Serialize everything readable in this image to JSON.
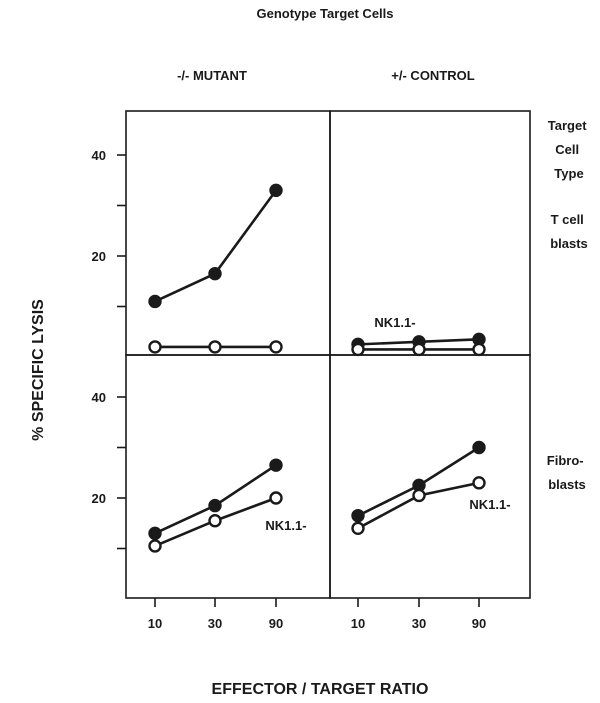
{
  "chart_data": {
    "type": "line",
    "title": "Genotype Target Cells",
    "xlabel": "EFFECTOR / TARGET RATIO",
    "ylabel": "% SPECIFIC LYSIS",
    "row_header": "Target Cell Type",
    "x_categories": [
      "10",
      "30",
      "90"
    ],
    "yticks": [
      20,
      40
    ],
    "ylim": [
      -9,
      49
    ],
    "columns": [
      "-/-  MUTANT",
      "+/- CONTROL"
    ],
    "rows": [
      "T cell blasts",
      "Fibro-blasts"
    ],
    "panels": [
      {
        "column": "-/-  MUTANT",
        "row": "T cell blasts",
        "label": "NK1.1-",
        "series": [
          {
            "marker": "filled",
            "values": [
              11,
              16.5,
              33
            ]
          },
          {
            "marker": "open",
            "values": [
              2,
              2,
              2
            ]
          }
        ]
      },
      {
        "column": "+/- CONTROL",
        "row": "T cell blasts",
        "label": "",
        "series": [
          {
            "marker": "filled",
            "values": [
              2.5,
              3,
              3.5
            ]
          },
          {
            "marker": "open",
            "values": [
              1.5,
              1.5,
              1.5
            ]
          }
        ]
      },
      {
        "column": "-/-  MUTANT",
        "row": "Fibro-blasts",
        "label": "NK1.1-",
        "series": [
          {
            "marker": "filled",
            "values": [
              13,
              18.5,
              26.5
            ]
          },
          {
            "marker": "open",
            "values": [
              10.5,
              15.5,
              20
            ]
          }
        ]
      },
      {
        "column": "+/- CONTROL",
        "row": "Fibro-blasts",
        "label": "NK1.1-",
        "series": [
          {
            "marker": "filled",
            "values": [
              16.5,
              22.5,
              30
            ]
          },
          {
            "marker": "open",
            "values": [
              14,
              20.5,
              23
            ]
          }
        ]
      }
    ]
  }
}
